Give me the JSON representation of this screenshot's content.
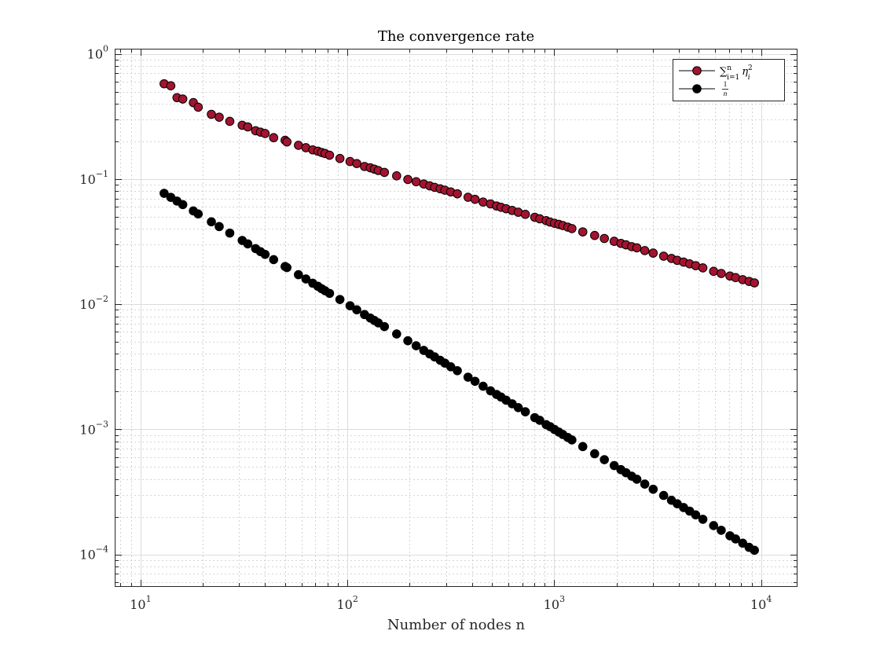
{
  "chart_data": {
    "type": "scatter",
    "title": "The convergence rate",
    "xlabel": "Number of nodes n",
    "ylabel": "",
    "xscale": "log",
    "yscale": "log",
    "xlim": [
      7.5,
      15000
    ],
    "ylim": [
      5.5e-05,
      1.1
    ],
    "grid": "on (major and minor)",
    "legend_placement": "top-right",
    "x_ticks": [
      {
        "base": "10",
        "exp": "1"
      },
      {
        "base": "10",
        "exp": "2"
      },
      {
        "base": "10",
        "exp": "3"
      },
      {
        "base": "10",
        "exp": "4"
      }
    ],
    "y_ticks": [
      {
        "base": "10",
        "exp": "0"
      },
      {
        "base": "10",
        "exp": "−1"
      },
      {
        "base": "10",
        "exp": "−2"
      },
      {
        "base": "10",
        "exp": "−3"
      },
      {
        "base": "10",
        "exp": "−4"
      }
    ],
    "x": [
      13,
      14,
      15,
      16,
      18,
      19,
      22,
      24,
      27,
      31,
      33,
      36,
      38,
      40,
      44,
      50,
      51,
      58,
      63,
      68,
      72,
      75,
      78,
      82,
      92,
      103,
      111,
      121,
      129,
      135,
      141,
      151,
      173,
      196,
      215,
      234,
      250,
      264,
      281,
      296,
      316,
      340,
      383,
      414,
      453,
      492,
      526,
      553,
      585,
      626,
      670,
      725,
      805,
      851,
      914,
      955,
      1003,
      1053,
      1100,
      1163,
      1217,
      1374,
      1568,
      1747,
      1949,
      2100,
      2223,
      2368,
      2509,
      2740,
      3008,
      3380,
      3687,
      3934,
      4222,
      4514,
      4830,
      5230,
      5896,
      6416,
      7070,
      7530,
      8150,
      8750,
      9286
    ],
    "series": [
      {
        "name": "∑ⁿᵢ₌₁ ηᵢ²",
        "legend_sum_sup": "n",
        "legend_sum_sub": "i=1",
        "legend_var": "η",
        "legend_var_sup": "2",
        "legend_var_sub": "i",
        "color": "#a2142f",
        "edge_color": "#000000",
        "marker": "filled circle",
        "values": [
          0.577,
          0.556,
          0.447,
          0.436,
          0.408,
          0.375,
          0.329,
          0.312,
          0.289,
          0.269,
          0.261,
          0.243,
          0.237,
          0.231,
          0.214,
          0.204,
          0.198,
          0.186,
          0.178,
          0.171,
          0.167,
          0.163,
          0.16,
          0.155,
          0.146,
          0.138,
          0.133,
          0.126,
          0.123,
          0.12,
          0.117,
          0.113,
          0.106,
          0.0992,
          0.0951,
          0.0913,
          0.0882,
          0.0859,
          0.0835,
          0.0815,
          0.0789,
          0.0762,
          0.0715,
          0.0689,
          0.0655,
          0.0633,
          0.0609,
          0.0595,
          0.0579,
          0.0561,
          0.0543,
          0.0522,
          0.0495,
          0.0481,
          0.0465,
          0.0453,
          0.0443,
          0.0434,
          0.0425,
          0.0413,
          0.0402,
          0.0378,
          0.0354,
          0.0335,
          0.0318,
          0.0306,
          0.0298,
          0.0288,
          0.0282,
          0.0268,
          0.0256,
          0.0242,
          0.0232,
          0.0224,
          0.0217,
          0.021,
          0.0203,
          0.0195,
          0.0183,
          0.0176,
          0.0168,
          0.0163,
          0.0157,
          0.0152,
          0.0148
        ]
      },
      {
        "name": "1/n",
        "legend_frac_num": "1",
        "legend_frac_den": "n",
        "color": "#000000",
        "edge_color": "#000000",
        "marker": "filled circle",
        "values": [
          0.0769,
          0.0714,
          0.0667,
          0.0625,
          0.0556,
          0.0526,
          0.0455,
          0.0417,
          0.037,
          0.0323,
          0.0303,
          0.0278,
          0.0263,
          0.025,
          0.0227,
          0.02,
          0.0196,
          0.0172,
          0.0159,
          0.0147,
          0.0139,
          0.0133,
          0.0128,
          0.0122,
          0.0109,
          0.00971,
          0.00901,
          0.00826,
          0.00775,
          0.00741,
          0.00709,
          0.00662,
          0.00578,
          0.0051,
          0.00465,
          0.00427,
          0.004,
          0.00379,
          0.00356,
          0.00338,
          0.00316,
          0.00294,
          0.00261,
          0.00242,
          0.00221,
          0.00203,
          0.0019,
          0.00181,
          0.00171,
          0.0016,
          0.00149,
          0.00138,
          0.00124,
          0.00118,
          0.00109,
          0.00105,
          0.000997,
          0.00095,
          0.000909,
          0.00086,
          0.000822,
          0.000728,
          0.000638,
          0.000572,
          0.000513,
          0.000476,
          0.00045,
          0.000422,
          0.000399,
          0.000365,
          0.000332,
          0.000296,
          0.000271,
          0.000254,
          0.000237,
          0.000222,
          0.000207,
          0.000191,
          0.00017,
          0.000156,
          0.000141,
          0.000133,
          0.000123,
          0.000114,
          0.000108
        ]
      }
    ]
  }
}
